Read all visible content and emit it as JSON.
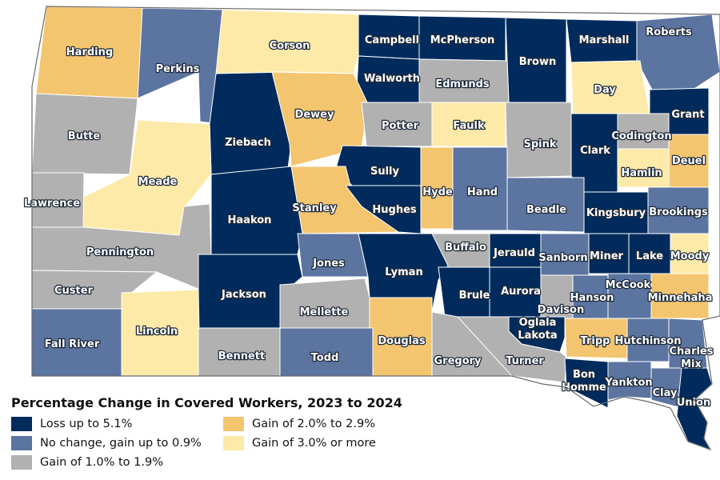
{
  "legend": {
    "title": "Percentage Change in Covered Workers, 2023 to 2024",
    "items": [
      {
        "label": "Loss up to 5.1%",
        "color": "#002b5c"
      },
      {
        "label": "No change, gain up to 0.9%",
        "color": "#5b74a0"
      },
      {
        "label": "Gain of 1.0% to 1.9%",
        "color": "#b1b1b1"
      },
      {
        "label": "Gain of 2.0% to 2.9%",
        "color": "#f4c56f"
      },
      {
        "label": "Gain of 3.0% or more",
        "color": "#fdeaa8"
      }
    ]
  },
  "counties": [
    {
      "name": "Harding",
      "category": 3
    },
    {
      "name": "Perkins",
      "category": 1
    },
    {
      "name": "Corson",
      "category": 4
    },
    {
      "name": "Campbell",
      "category": 0
    },
    {
      "name": "McPherson",
      "category": 0
    },
    {
      "name": "Brown",
      "category": 0
    },
    {
      "name": "Marshall",
      "category": 0
    },
    {
      "name": "Roberts",
      "category": 1
    },
    {
      "name": "Walworth",
      "category": 0
    },
    {
      "name": "Edmunds",
      "category": 2
    },
    {
      "name": "Day",
      "category": 4
    },
    {
      "name": "Grant",
      "category": 0
    },
    {
      "name": "Butte",
      "category": 2
    },
    {
      "name": "Ziebach",
      "category": 0
    },
    {
      "name": "Dewey",
      "category": 3
    },
    {
      "name": "Potter",
      "category": 2
    },
    {
      "name": "Faulk",
      "category": 4
    },
    {
      "name": "Spink",
      "category": 2
    },
    {
      "name": "Clark",
      "category": 0
    },
    {
      "name": "Codington",
      "category": 2
    },
    {
      "name": "Deuel",
      "category": 3
    },
    {
      "name": "Hamlin",
      "category": 4
    },
    {
      "name": "Meade",
      "category": 4
    },
    {
      "name": "Sully",
      "category": 0
    },
    {
      "name": "Hyde",
      "category": 3
    },
    {
      "name": "Hand",
      "category": 1
    },
    {
      "name": "Lawrence",
      "category": 2
    },
    {
      "name": "Stanley",
      "category": 3
    },
    {
      "name": "Hughes",
      "category": 0
    },
    {
      "name": "Beadle",
      "category": 1
    },
    {
      "name": "Kingsbury",
      "category": 0
    },
    {
      "name": "Brookings",
      "category": 1
    },
    {
      "name": "Haakon",
      "category": 0
    },
    {
      "name": "Pennington",
      "category": 2
    },
    {
      "name": "Buffalo",
      "category": 2
    },
    {
      "name": "Jerauld",
      "category": 0
    },
    {
      "name": "Sanborn",
      "category": 1
    },
    {
      "name": "Miner",
      "category": 0
    },
    {
      "name": "Lake",
      "category": 0
    },
    {
      "name": "Moody",
      "category": 4
    },
    {
      "name": "Jones",
      "category": 1
    },
    {
      "name": "Lyman",
      "category": 0
    },
    {
      "name": "Custer",
      "category": 2
    },
    {
      "name": "Jackson",
      "category": 0
    },
    {
      "name": "Brule",
      "category": 0
    },
    {
      "name": "Aurora",
      "category": 0
    },
    {
      "name": "McCook",
      "category": 1
    },
    {
      "name": "Hanson",
      "category": 1
    },
    {
      "name": "Minnehaha",
      "category": 3
    },
    {
      "name": "Davison",
      "category": 2
    },
    {
      "name": "Mellette",
      "category": 2
    },
    {
      "name": "Fall River",
      "category": 1
    },
    {
      "name": "Oglala\nLakota",
      "category": 0
    },
    {
      "name": "Douglas",
      "category": 3
    },
    {
      "name": "Tripp",
      "category": 3
    },
    {
      "name": "Hutchinson",
      "category": 1
    },
    {
      "name": "Turner",
      "category": 2
    },
    {
      "name": "Charles\nMix",
      "category": 1
    },
    {
      "name": "Lincoln",
      "category": 4
    },
    {
      "name": "Bennett",
      "category": 2
    },
    {
      "name": "Todd",
      "category": 1
    },
    {
      "name": "Gregory",
      "category": 2
    },
    {
      "name": "Bon\nHomme",
      "category": 0
    },
    {
      "name": "Yankton",
      "category": 1
    },
    {
      "name": "Clay",
      "category": 1
    },
    {
      "name": "Union",
      "category": 0
    }
  ]
}
